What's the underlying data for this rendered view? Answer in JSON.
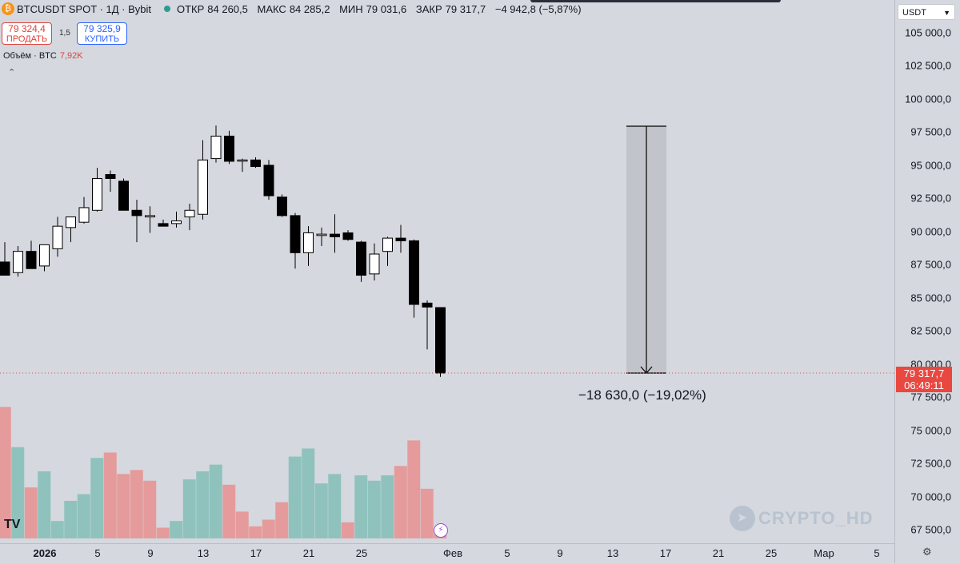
{
  "header": {
    "symbol": "BTCUSDT SPOT · 1Д · Bybit",
    "ohlc": {
      "open_label": "ОТКР",
      "open": "84 260,5",
      "high_label": "МАКС",
      "high": "84 285,2",
      "low_label": "МИН",
      "low": "79 031,6",
      "close_label": "ЗАКР",
      "close": "79 317,7",
      "change": "−4 942,8 (−5,87%)"
    },
    "sell_price": "79 324,4",
    "sell_label": "ПРОДАТЬ",
    "spread": "1,5",
    "buy_price": "79 325,9",
    "buy_label": "КУПИТЬ",
    "volume_label": "Объём · BTC",
    "volume_value": "7,92K",
    "collapse_glyph": "⌃"
  },
  "price_scale": {
    "currency": "USDT",
    "ticks": [
      "105 000,0",
      "102 500,0",
      "100 000,0",
      "97 500,0",
      "95 000,0",
      "92 500,0",
      "90 000,0",
      "87 500,0",
      "85 000,0",
      "82 500,0",
      "80 000,0",
      "77 500,0",
      "75 000,0",
      "72 500,0",
      "70 000,0",
      "67 500,0"
    ],
    "current_price": "79 317,7",
    "countdown": "06:49:11"
  },
  "time_scale": {
    "labels": [
      {
        "text": "2026",
        "bold": true
      },
      {
        "text": "5"
      },
      {
        "text": "9"
      },
      {
        "text": "13"
      },
      {
        "text": "17"
      },
      {
        "text": "21"
      },
      {
        "text": "25"
      },
      {
        "text": "Фев"
      },
      {
        "text": "5"
      },
      {
        "text": "9"
      },
      {
        "text": "13"
      },
      {
        "text": "17"
      },
      {
        "text": "21"
      },
      {
        "text": "25"
      },
      {
        "text": "Мар"
      },
      {
        "text": "5"
      }
    ]
  },
  "measure": {
    "label": "−18 630,0 (−19,02%)"
  },
  "watermark": "CRYPTO_HD",
  "tv_logo": "TV",
  "colors": {
    "up_body": "#ffffff",
    "down_body": "#000000",
    "vol_up": "#8fc2bd",
    "vol_down": "#e59b9b",
    "last_price": "#e8483f"
  },
  "chart_data": {
    "type": "candlestick",
    "ylim": [
      66000,
      106500
    ],
    "candles": [
      {
        "o": 87700,
        "h": 89200,
        "l": 86900,
        "c": 86700
      },
      {
        "o": 86900,
        "h": 88900,
        "l": 86600,
        "c": 88500
      },
      {
        "o": 88500,
        "h": 89300,
        "l": 87400,
        "c": 87200
      },
      {
        "o": 87400,
        "h": 89000,
        "l": 87000,
        "c": 89000
      },
      {
        "o": 88700,
        "h": 91100,
        "l": 88100,
        "c": 90400
      },
      {
        "o": 90300,
        "h": 91000,
        "l": 89200,
        "c": 91100
      },
      {
        "o": 90700,
        "h": 92600,
        "l": 90600,
        "c": 91800
      },
      {
        "o": 91600,
        "h": 94800,
        "l": 91500,
        "c": 94000
      },
      {
        "o": 94300,
        "h": 94600,
        "l": 93000,
        "c": 94000
      },
      {
        "o": 93800,
        "h": 94000,
        "l": 91700,
        "c": 91600
      },
      {
        "o": 91600,
        "h": 92400,
        "l": 89200,
        "c": 91200
      },
      {
        "o": 91100,
        "h": 91900,
        "l": 89900,
        "c": 91200
      },
      {
        "o": 90600,
        "h": 90900,
        "l": 90500,
        "c": 90400
      },
      {
        "o": 90600,
        "h": 91500,
        "l": 90300,
        "c": 90800
      },
      {
        "o": 91100,
        "h": 92100,
        "l": 90100,
        "c": 91600
      },
      {
        "o": 91300,
        "h": 96900,
        "l": 90900,
        "c": 95400
      },
      {
        "o": 95500,
        "h": 98000,
        "l": 95200,
        "c": 97200
      },
      {
        "o": 97200,
        "h": 97600,
        "l": 95100,
        "c": 95300
      },
      {
        "o": 95400,
        "h": 95500,
        "l": 94500,
        "c": 95400
      },
      {
        "o": 95400,
        "h": 95600,
        "l": 94800,
        "c": 94900
      },
      {
        "o": 95000,
        "h": 95400,
        "l": 92400,
        "c": 92700
      },
      {
        "o": 92600,
        "h": 92800,
        "l": 91100,
        "c": 91200
      },
      {
        "o": 91200,
        "h": 91400,
        "l": 87200,
        "c": 88400
      },
      {
        "o": 88400,
        "h": 90400,
        "l": 87400,
        "c": 89900
      },
      {
        "o": 89700,
        "h": 90300,
        "l": 88900,
        "c": 89800
      },
      {
        "o": 89800,
        "h": 91300,
        "l": 88400,
        "c": 89600
      },
      {
        "o": 89900,
        "h": 90100,
        "l": 89300,
        "c": 89400
      },
      {
        "o": 89200,
        "h": 89300,
        "l": 86200,
        "c": 86700
      },
      {
        "o": 86800,
        "h": 89100,
        "l": 86300,
        "c": 88300
      },
      {
        "o": 88500,
        "h": 89600,
        "l": 87400,
        "c": 89500
      },
      {
        "o": 89500,
        "h": 90500,
        "l": 88400,
        "c": 89300
      },
      {
        "o": 89300,
        "h": 89400,
        "l": 83500,
        "c": 84500
      },
      {
        "o": 84600,
        "h": 84800,
        "l": 81100,
        "c": 84300
      },
      {
        "o": 84260.5,
        "h": 84285.2,
        "l": 79031.6,
        "c": 79317.7
      }
    ],
    "volume_direction": [
      "down",
      "up",
      "down",
      "up",
      "up",
      "up",
      "up",
      "up",
      "down",
      "down",
      "down",
      "down",
      "down",
      "up",
      "up",
      "up",
      "up",
      "down",
      "down",
      "down",
      "down",
      "down",
      "up",
      "up",
      "up",
      "up",
      "down",
      "up",
      "up",
      "up",
      "down",
      "down",
      "down",
      "down"
    ],
    "volume_relative": [
      0.98,
      0.68,
      0.38,
      0.5,
      0.13,
      0.28,
      0.33,
      0.6,
      0.64,
      0.48,
      0.51,
      0.43,
      0.08,
      0.13,
      0.44,
      0.5,
      0.55,
      0.4,
      0.2,
      0.09,
      0.14,
      0.27,
      0.61,
      0.67,
      0.41,
      0.48,
      0.12,
      0.47,
      0.43,
      0.47,
      0.54,
      0.73,
      0.37,
      0.03
    ]
  }
}
